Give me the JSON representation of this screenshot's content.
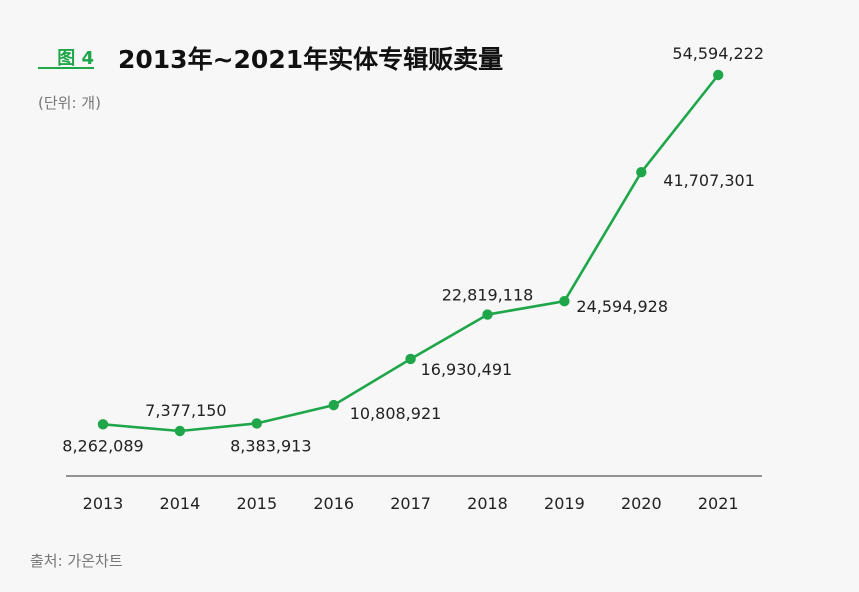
{
  "header": {
    "figure_label": "图 4",
    "title": "2013年~2021年实体专辑贩卖量",
    "unit": "(단위: 개)"
  },
  "footer": {
    "source": "출처: 가온차트"
  },
  "colors": {
    "accent": "#1fa64a",
    "axis": "#555555"
  },
  "chart_data": {
    "type": "line",
    "categories": [
      "2013",
      "2014",
      "2015",
      "2016",
      "2017",
      "2018",
      "2019",
      "2020",
      "2021"
    ],
    "values": [
      8262089,
      7377150,
      8383913,
      10808921,
      16930491,
      22819118,
      24594928,
      41707301,
      54594222
    ],
    "value_labels": [
      "8,262,089",
      "7,377,150",
      "8,383,913",
      "10,808,921",
      "16,930,491",
      "22,819,118",
      "24,594,928",
      "41,707,301",
      "54,594,222"
    ],
    "title": "2013年~2021年实体专辑贩卖量",
    "xlabel": "",
    "ylabel": "",
    "grid": false,
    "legend": "none"
  }
}
